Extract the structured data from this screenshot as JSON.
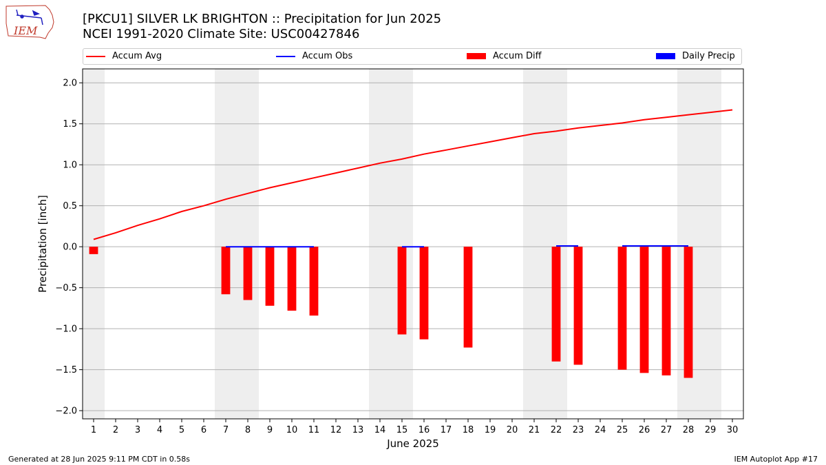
{
  "header": {
    "title_line1": "[PKCU1] SILVER LK BRIGHTON :: Precipitation for Jun 2025",
    "title_line2": "NCEI 1991-2020 Climate Site: USC00427846"
  },
  "logo": {
    "text": "IEM"
  },
  "legend": {
    "placement": "top, above plot",
    "items": [
      {
        "label": "Accum Avg",
        "kind": "line",
        "color": "#ff0000"
      },
      {
        "label": "Accum Obs",
        "kind": "line",
        "color": "#0000ff"
      },
      {
        "label": "Accum Diff",
        "kind": "box",
        "color": "#ff0000"
      },
      {
        "label": "Daily Precip",
        "kind": "box",
        "color": "#0000ff"
      }
    ]
  },
  "footer": {
    "left": "Generated at 28 Jun 2025 9:11 PM CDT in 0.58s",
    "right": "IEM Autoplot App #17"
  },
  "chart_data": {
    "type": "bar",
    "xlabel": "June 2025",
    "ylabel": "Precipitation [inch]",
    "xlim": [
      0.5,
      30.5
    ],
    "ylim": [
      -2.1,
      2.17
    ],
    "yticks": [
      2.0,
      1.5,
      1.0,
      0.5,
      0.0,
      -0.5,
      -1.0,
      -1.5,
      -2.0
    ],
    "ytick_labels": [
      "2.0",
      "1.5",
      "1.0",
      "0.5",
      "0.0",
      "−0.5",
      "−1.0",
      "−1.5",
      "−2.0"
    ],
    "x": [
      1,
      2,
      3,
      4,
      5,
      6,
      7,
      8,
      9,
      10,
      11,
      12,
      13,
      14,
      15,
      16,
      17,
      18,
      19,
      20,
      21,
      22,
      23,
      24,
      25,
      26,
      27,
      28,
      29,
      30
    ],
    "x_tick_labels": [
      "1",
      "2",
      "3",
      "4",
      "5",
      "6",
      "7",
      "8",
      "9",
      "10",
      "11",
      "12",
      "13",
      "14",
      "15",
      "16",
      "17",
      "18",
      "19",
      "20",
      "21",
      "22",
      "23",
      "24",
      "25",
      "26",
      "27",
      "28",
      "29",
      "30"
    ],
    "grid": "horizontal",
    "weekend_shading": [
      [
        0.5,
        1.5
      ],
      [
        6.5,
        8.5
      ],
      [
        13.5,
        15.5
      ],
      [
        20.5,
        22.5
      ],
      [
        27.5,
        29.5
      ]
    ],
    "series": [
      {
        "name": "Accum Avg",
        "type": "line",
        "color": "#ff0000",
        "x": [
          1,
          2,
          3,
          4,
          5,
          6,
          7,
          8,
          9,
          10,
          11,
          12,
          13,
          14,
          15,
          16,
          17,
          18,
          19,
          20,
          21,
          22,
          23,
          24,
          25,
          26,
          27,
          28,
          29,
          30
        ],
        "values": [
          0.09,
          0.17,
          0.26,
          0.34,
          0.43,
          0.5,
          0.58,
          0.65,
          0.72,
          0.78,
          0.84,
          0.9,
          0.96,
          1.02,
          1.07,
          1.13,
          1.18,
          1.23,
          1.28,
          1.33,
          1.38,
          1.41,
          1.45,
          1.48,
          1.51,
          1.55,
          1.58,
          1.61,
          1.64,
          1.67
        ]
      },
      {
        "name": "Accum Obs",
        "type": "line",
        "color": "#0000ff",
        "segments": [
          {
            "x": [
              7,
              8,
              9,
              10,
              11
            ],
            "values": [
              0.0,
              0.0,
              0.0,
              0.0,
              0.0
            ]
          },
          {
            "x": [
              15,
              16
            ],
            "values": [
              0.0,
              0.0
            ]
          },
          {
            "x": [
              22,
              23
            ],
            "values": [
              0.01,
              0.01
            ]
          },
          {
            "x": [
              25,
              26,
              27,
              28
            ],
            "values": [
              0.01,
              0.01,
              0.01,
              0.01
            ]
          }
        ]
      },
      {
        "name": "Accum Diff",
        "type": "bar",
        "color": "#ff0000",
        "x": [
          1,
          7,
          8,
          9,
          10,
          11,
          15,
          16,
          18,
          22,
          23,
          25,
          26,
          27,
          28
        ],
        "values": [
          -0.09,
          -0.58,
          -0.65,
          -0.72,
          -0.78,
          -0.84,
          -1.07,
          -1.13,
          -1.23,
          -1.4,
          -1.44,
          -1.5,
          -1.54,
          -1.57,
          -1.6
        ]
      },
      {
        "name": "Daily Precip",
        "type": "bar",
        "color": "#0000ff",
        "x": [],
        "values": []
      }
    ]
  }
}
